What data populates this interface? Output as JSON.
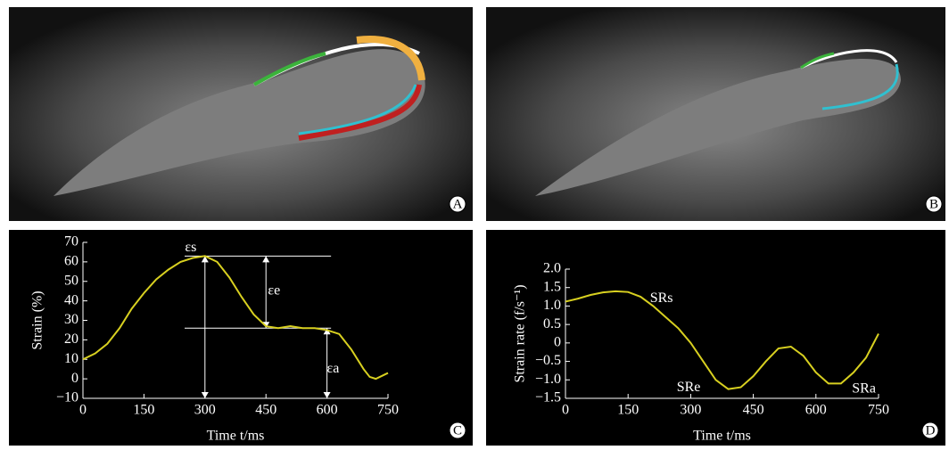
{
  "image_panels": [
    {
      "label": "A"
    },
    {
      "label": "B"
    }
  ],
  "chart_data": [
    {
      "type": "line",
      "panel_label": "C",
      "xlabel": "Time t/ms",
      "ylabel": "Strain (%)",
      "xlim": [
        0,
        750
      ],
      "xticks": [
        0,
        150,
        300,
        450,
        600,
        750
      ],
      "ylim": [
        -10,
        70
      ],
      "yticks": [
        {
          "value": -10,
          "label": "−10"
        },
        0,
        10,
        20,
        30,
        40,
        50,
        60,
        70
      ],
      "series": [
        {
          "color": "#d8d020",
          "x": [
            0,
            30,
            60,
            90,
            120,
            150,
            180,
            210,
            240,
            270,
            300,
            330,
            360,
            390,
            420,
            450,
            480,
            510,
            540,
            570,
            600,
            630,
            660,
            690,
            705,
            720,
            750
          ],
          "values": [
            10,
            13,
            18,
            26,
            36,
            44,
            51,
            56,
            60,
            62,
            63,
            60,
            52,
            42,
            33,
            27,
            26,
            27,
            26,
            26,
            25,
            23,
            15,
            5,
            1,
            0,
            3
          ]
        }
      ],
      "hlines": [
        {
          "y": 63,
          "x": [
            250,
            610
          ]
        },
        {
          "y": 26,
          "x": [
            250,
            610
          ]
        }
      ],
      "arrows": [
        {
          "x": 300,
          "y": [
            63,
            -10
          ]
        },
        {
          "x": 450,
          "y": [
            63,
            26
          ]
        },
        {
          "x": 600,
          "y": [
            26,
            -10
          ]
        }
      ],
      "annotations": [
        {
          "text": "εs",
          "x": 265,
          "y": 67
        },
        {
          "text": "εe",
          "x": 470,
          "y": 45
        },
        {
          "text": "εa",
          "x": 615,
          "y": 5
        }
      ]
    },
    {
      "type": "line",
      "panel_label": "D",
      "xlabel": "Time t/ms",
      "ylabel": "Strain rate (f/s⁻¹)",
      "xlim": [
        0,
        750
      ],
      "xticks": [
        0,
        150,
        300,
        450,
        600,
        750
      ],
      "ylim": [
        -1.5,
        2.0
      ],
      "yticks": [
        {
          "value": -1.5,
          "label": "−1.5"
        },
        {
          "value": -1.0,
          "label": "−1.0"
        },
        {
          "value": -0.5,
          "label": "−0.5"
        },
        0,
        0.5,
        {
          "value": 1.0,
          "label": "1.0"
        },
        1.5,
        {
          "value": 2.0,
          "label": "2.0"
        }
      ],
      "series": [
        {
          "color": "#d8d020",
          "x": [
            0,
            30,
            60,
            90,
            120,
            150,
            180,
            210,
            240,
            270,
            300,
            330,
            360,
            390,
            420,
            450,
            480,
            510,
            540,
            570,
            600,
            630,
            660,
            690,
            720,
            750
          ],
          "values": [
            1.12,
            1.2,
            1.3,
            1.37,
            1.4,
            1.38,
            1.25,
            1.0,
            0.7,
            0.4,
            0.0,
            -0.5,
            -1.0,
            -1.25,
            -1.2,
            -0.9,
            -0.5,
            -0.15,
            -0.1,
            -0.35,
            -0.8,
            -1.1,
            -1.1,
            -0.8,
            -0.4,
            0.25
          ]
        }
      ],
      "annotations": [
        {
          "text": "SRs",
          "x": 230,
          "y": 1.2
        },
        {
          "text": "SRe",
          "x": 295,
          "y": -1.22
        },
        {
          "text": "SRa",
          "x": 715,
          "y": -1.25
        }
      ]
    }
  ]
}
